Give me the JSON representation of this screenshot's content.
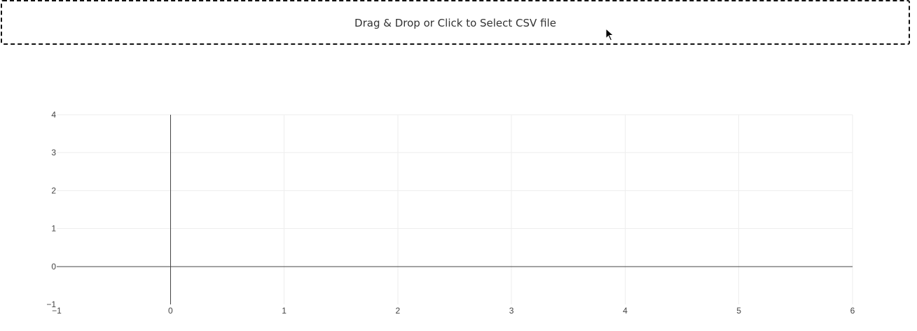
{
  "upload": {
    "label": "Drag & Drop or Click to Select CSV file"
  },
  "chart_data": {
    "type": "scatter",
    "title": "",
    "xlabel": "",
    "ylabel": "",
    "series": [],
    "xlim": [
      -1,
      6
    ],
    "ylim": [
      -1,
      4
    ],
    "x_ticks": [
      -1,
      0,
      1,
      2,
      3,
      4,
      5,
      6
    ],
    "y_ticks": [
      -1,
      0,
      1,
      2,
      3,
      4
    ],
    "x_tick_labels": [
      "−1",
      "0",
      "1",
      "2",
      "3",
      "4",
      "5",
      "6"
    ],
    "y_tick_labels": [
      "−1",
      "0",
      "1",
      "2",
      "3",
      "4"
    ],
    "grid": true,
    "zero_lines": true
  },
  "colors": {
    "grid": "#eeeeee",
    "zero_line": "#444444",
    "upload_border": "#111111"
  },
  "icons": {
    "cursor": "mouse-pointer-icon"
  }
}
